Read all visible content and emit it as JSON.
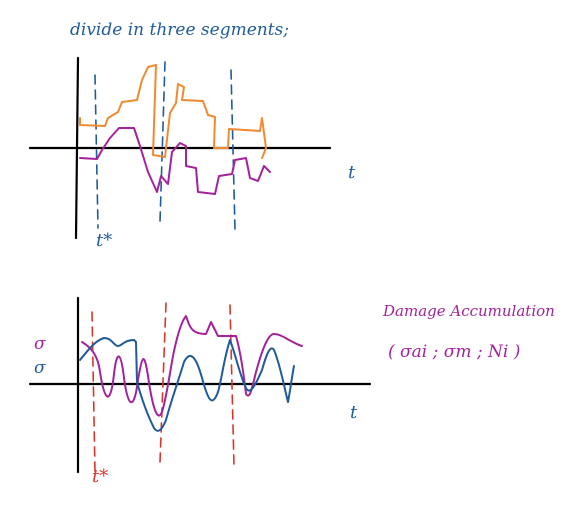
{
  "top_sketch": {
    "title": "divide in three segments;",
    "x_axis_label": "t",
    "marker_label": "t*"
  },
  "bottom_sketch": {
    "y_label_upper": "σ",
    "y_label_lower": "σ",
    "x_axis_label": "t",
    "marker_label": "t*"
  },
  "side_note": {
    "title": "Damage Accumulation",
    "formula": "( σai ; σm ; Ni )"
  },
  "colors": {
    "ink": "#000000",
    "blue": "#1f5c99",
    "orange": "#f08a30",
    "purple": "#a3239a",
    "red": "#d9362b",
    "note_purple": "#a3239a"
  }
}
